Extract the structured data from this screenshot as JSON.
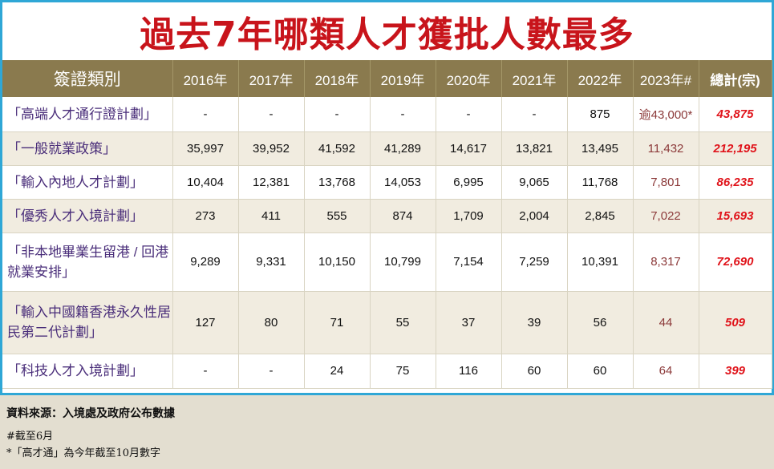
{
  "title": "過去7年哪類人才獲批人數最多",
  "header": [
    "簽證類別",
    "2016年",
    "2017年",
    "2018年",
    "2019年",
    "2020年",
    "2021年",
    "2022年",
    "2023年#",
    "總計(宗)"
  ],
  "rows": [
    {
      "cat": "「高端人才通行證計劃」",
      "v": [
        "-",
        "-",
        "-",
        "-",
        "-",
        "-",
        "875",
        "逾43,000*",
        "43,875"
      ]
    },
    {
      "cat": "「一般就業政策」",
      "v": [
        "35,997",
        "39,952",
        "41,592",
        "41,289",
        "14,617",
        "13,821",
        "13,495",
        "11,432",
        "212,195"
      ]
    },
    {
      "cat": "「輸入內地人才計劃」",
      "v": [
        "10,404",
        "12,381",
        "13,768",
        "14,053",
        "6,995",
        "9,065",
        "11,768",
        "7,801",
        "86,235"
      ]
    },
    {
      "cat": "「優秀人才入境計劃」",
      "v": [
        "273",
        "411",
        "555",
        "874",
        "1,709",
        "2,004",
        "2,845",
        "7,022",
        "15,693"
      ]
    },
    {
      "cat": "「非本地畢業生留港 / 回港就業安排」",
      "v": [
        "9,289",
        "9,331",
        "10,150",
        "10,799",
        "7,154",
        "7,259",
        "10,391",
        "8,317",
        "72,690"
      ]
    },
    {
      "cat": "「輸入中國籍香港永久性居民第二代計劃」",
      "v": [
        "127",
        "80",
        "71",
        "55",
        "37",
        "39",
        "56",
        "44",
        "509"
      ]
    },
    {
      "cat": "「科技人才入境計劃」",
      "v": [
        "-",
        "-",
        "24",
        "75",
        "116",
        "60",
        "60",
        "64",
        "399"
      ]
    }
  ],
  "footer": {
    "source": "資料來源：入境處及政府公布數據",
    "note1": "#截至6月",
    "note2": "*「高才通」為今年截至10月數字"
  }
}
